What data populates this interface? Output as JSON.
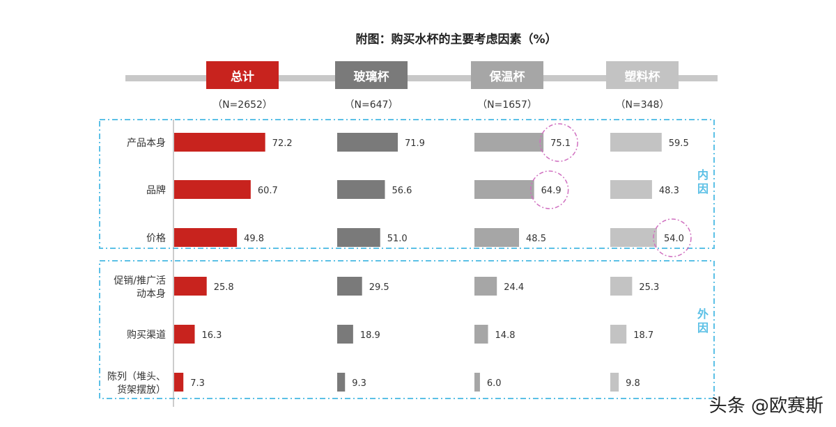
{
  "chart_data": {
    "type": "bar",
    "orientation": "horizontal",
    "title": "附图：购买水杯的主要考虑因素（%）",
    "categories": [
      "产品本身",
      "品牌",
      "价格",
      "促销/推广活动本身",
      "购买渠道",
      "陈列（堆头、货架摆放）"
    ],
    "category_lines": [
      [
        "产品本身"
      ],
      [
        "品牌"
      ],
      [
        "价格"
      ],
      [
        "促销/推广活",
        "动本身"
      ],
      [
        "购买渠道"
      ],
      [
        "陈列（堆头、",
        "货架摆放）"
      ]
    ],
    "groups": [
      {
        "label": "内因",
        "categories": [
          "产品本身",
          "品牌",
          "价格"
        ]
      },
      {
        "label": "外因",
        "categories": [
          "促销/推广活动本身",
          "购买渠道",
          "陈列（堆头、货架摆放）"
        ]
      }
    ],
    "series": [
      {
        "name": "总计",
        "n_label": "（N=2652）",
        "color": "#c8231e",
        "values": [
          72.2,
          60.7,
          49.8,
          25.8,
          16.3,
          7.3
        ]
      },
      {
        "name": "玻璃杯",
        "n_label": "（N=647）",
        "color": "#7a7a7a",
        "values": [
          71.9,
          56.6,
          51.0,
          29.5,
          18.9,
          9.3
        ]
      },
      {
        "name": "保温杯",
        "n_label": "（N=1657）",
        "color": "#a6a6a6",
        "values": [
          75.1,
          64.9,
          48.5,
          24.4,
          14.8,
          6.0
        ]
      },
      {
        "name": "塑料杯",
        "n_label": "（N=348）",
        "color": "#c3c3c3",
        "values": [
          59.5,
          48.3,
          54.0,
          25.3,
          18.7,
          9.8
        ]
      }
    ],
    "highlighted": [
      {
        "series": "保温杯",
        "category": "产品本身"
      },
      {
        "series": "保温杯",
        "category": "品牌"
      },
      {
        "series": "塑料杯",
        "category": "价格"
      }
    ],
    "colors": {
      "group_box": "#5bc0e6",
      "highlight": "#d070c0",
      "header_line": "#c8c8c8"
    }
  },
  "watermark": "头条 @欧赛斯"
}
